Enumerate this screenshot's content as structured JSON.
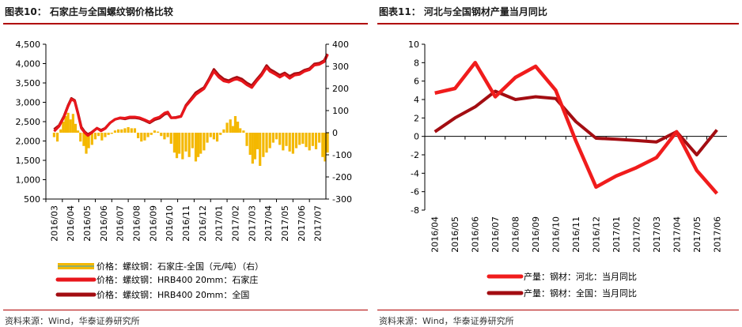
{
  "left_panel": {
    "title": "图表10：   石家庄与全国螺纹钢价格比较",
    "source": "资料来源：Wind，华泰证券研究所"
  },
  "right_panel": {
    "title": "图表11：   河北与全国钢材产量当月同比",
    "source": "资料来源：Wind，华泰证券研究所"
  },
  "chart_data": [
    {
      "type": "line",
      "title": "",
      "ylim_left": [
        500,
        4500
      ],
      "ylim_right": [
        -300,
        400
      ],
      "y_ticks_left": [
        "4,500",
        "4,000",
        "3,500",
        "3,000",
        "2,500",
        "2,000",
        "1,500",
        "1,000",
        "500"
      ],
      "y_ticks_right": [
        "400",
        "300",
        "200",
        "100",
        "0",
        "-100",
        "-200",
        "-300"
      ],
      "x_ticks": [
        "2016/03",
        "2016/04",
        "2016/05",
        "2016/06",
        "2016/07",
        "2016/08",
        "2016/09",
        "2016/10",
        "2016/11",
        "2016/12",
        "2017/01",
        "2017/02",
        "2017/03",
        "2017/04",
        "2017/05",
        "2017/06",
        "2017/07"
      ],
      "legend": [
        {
          "label": "价格：螺纹钢：石家庄-全国（元/吨）（右）",
          "color": "#f4b800"
        },
        {
          "label": "价格：螺纹钢：HRB400 20mm：石家庄",
          "color": "#e8161b"
        },
        {
          "label": "价格：螺纹钢：HRB400 20mm：全国",
          "color": "#a30d12"
        }
      ],
      "series": [
        {
          "name": "价格：螺纹钢：HRB400 20mm：石家庄",
          "axis": "left",
          "points": [
            [
              0,
              2250
            ],
            [
              0.3,
              2380
            ],
            [
              0.6,
              2620
            ],
            [
              0.85,
              2900
            ],
            [
              1.05,
              3080
            ],
            [
              1.25,
              3030
            ],
            [
              1.45,
              2700
            ],
            [
              1.65,
              2330
            ],
            [
              1.85,
              2220
            ],
            [
              2.05,
              2140
            ],
            [
              2.3,
              2220
            ],
            [
              2.6,
              2330
            ],
            [
              2.85,
              2260
            ],
            [
              3.1,
              2320
            ],
            [
              3.4,
              2470
            ],
            [
              3.7,
              2560
            ],
            [
              4.0,
              2600
            ],
            [
              4.3,
              2590
            ],
            [
              4.6,
              2620
            ],
            [
              4.9,
              2620
            ],
            [
              5.2,
              2600
            ],
            [
              5.5,
              2550
            ],
            [
              5.8,
              2490
            ],
            [
              6.1,
              2580
            ],
            [
              6.4,
              2620
            ],
            [
              6.7,
              2720
            ],
            [
              6.9,
              2750
            ],
            [
              7.1,
              2600
            ],
            [
              7.4,
              2600
            ],
            [
              7.7,
              2630
            ],
            [
              8.0,
              2900
            ],
            [
              8.3,
              3050
            ],
            [
              8.6,
              3200
            ],
            [
              8.9,
              3290
            ],
            [
              9.1,
              3350
            ],
            [
              9.4,
              3570
            ],
            [
              9.7,
              3800
            ],
            [
              10.0,
              3650
            ],
            [
              10.3,
              3550
            ],
            [
              10.6,
              3520
            ],
            [
              10.9,
              3580
            ],
            [
              11.1,
              3600
            ],
            [
              11.4,
              3550
            ],
            [
              11.7,
              3450
            ],
            [
              12.0,
              3380
            ],
            [
              12.3,
              3550
            ],
            [
              12.6,
              3700
            ],
            [
              12.9,
              3900
            ],
            [
              13.1,
              3800
            ],
            [
              13.4,
              3730
            ],
            [
              13.7,
              3650
            ],
            [
              14.0,
              3720
            ],
            [
              14.3,
              3620
            ],
            [
              14.6,
              3700
            ],
            [
              14.9,
              3720
            ],
            [
              15.2,
              3800
            ],
            [
              15.5,
              3840
            ],
            [
              15.8,
              3960
            ],
            [
              16.1,
              3980
            ],
            [
              16.4,
              4050
            ],
            [
              16.6,
              4230
            ]
          ]
        },
        {
          "name": "价格：螺纹钢：HRB400 20mm：全国",
          "axis": "left",
          "points": [
            [
              0,
              2300
            ],
            [
              0.3,
              2400
            ],
            [
              0.6,
              2640
            ],
            [
              0.85,
              2920
            ],
            [
              1.05,
              3100
            ],
            [
              1.25,
              3050
            ],
            [
              1.45,
              2720
            ],
            [
              1.65,
              2360
            ],
            [
              1.85,
              2240
            ],
            [
              2.05,
              2170
            ],
            [
              2.3,
              2230
            ],
            [
              2.6,
              2330
            ],
            [
              2.85,
              2280
            ],
            [
              3.1,
              2330
            ],
            [
              3.4,
              2470
            ],
            [
              3.7,
              2560
            ],
            [
              4.0,
              2590
            ],
            [
              4.3,
              2570
            ],
            [
              4.6,
              2600
            ],
            [
              4.9,
              2600
            ],
            [
              5.2,
              2580
            ],
            [
              5.5,
              2530
            ],
            [
              5.8,
              2470
            ],
            [
              6.1,
              2550
            ],
            [
              6.4,
              2590
            ],
            [
              6.7,
              2690
            ],
            [
              6.9,
              2720
            ],
            [
              7.1,
              2600
            ],
            [
              7.4,
              2610
            ],
            [
              7.7,
              2640
            ],
            [
              8.0,
              2920
            ],
            [
              8.3,
              3080
            ],
            [
              8.6,
              3250
            ],
            [
              8.9,
              3330
            ],
            [
              9.1,
              3380
            ],
            [
              9.4,
              3600
            ],
            [
              9.7,
              3850
            ],
            [
              10.0,
              3700
            ],
            [
              10.3,
              3600
            ],
            [
              10.6,
              3560
            ],
            [
              10.9,
              3620
            ],
            [
              11.1,
              3650
            ],
            [
              11.4,
              3600
            ],
            [
              11.7,
              3500
            ],
            [
              12.0,
              3430
            ],
            [
              12.3,
              3590
            ],
            [
              12.6,
              3740
            ],
            [
              12.9,
              3950
            ],
            [
              13.1,
              3850
            ],
            [
              13.4,
              3780
            ],
            [
              13.7,
              3700
            ],
            [
              14.0,
              3760
            ],
            [
              14.3,
              3670
            ],
            [
              14.6,
              3740
            ],
            [
              14.9,
              3760
            ],
            [
              15.2,
              3830
            ],
            [
              15.5,
              3870
            ],
            [
              15.8,
              3990
            ],
            [
              16.1,
              4010
            ],
            [
              16.4,
              4080
            ],
            [
              16.6,
              4250
            ]
          ]
        },
        {
          "name": "价格：螺纹钢：石家庄-全国（元/吨）（右）",
          "axis": "right",
          "type": "bar",
          "points": [
            [
              0.0,
              -20
            ],
            [
              0.2,
              -40
            ],
            [
              0.4,
              15
            ],
            [
              0.55,
              50
            ],
            [
              0.7,
              75
            ],
            [
              0.85,
              90
            ],
            [
              1.0,
              60
            ],
            [
              1.15,
              85
            ],
            [
              1.3,
              40
            ],
            [
              1.45,
              10
            ],
            [
              1.6,
              -40
            ],
            [
              1.8,
              -60
            ],
            [
              1.95,
              -95
            ],
            [
              2.1,
              -70
            ],
            [
              2.3,
              -55
            ],
            [
              2.5,
              -30
            ],
            [
              2.7,
              -15
            ],
            [
              2.9,
              -35
            ],
            [
              3.1,
              -20
            ],
            [
              3.3,
              -10
            ],
            [
              3.5,
              -5
            ],
            [
              3.7,
              10
            ],
            [
              3.9,
              15
            ],
            [
              4.1,
              15
            ],
            [
              4.3,
              20
            ],
            [
              4.5,
              25
            ],
            [
              4.7,
              20
            ],
            [
              4.9,
              20
            ],
            [
              5.1,
              -25
            ],
            [
              5.3,
              -40
            ],
            [
              5.5,
              -35
            ],
            [
              5.7,
              -20
            ],
            [
              5.9,
              -10
            ],
            [
              6.1,
              10
            ],
            [
              6.3,
              5
            ],
            [
              6.5,
              -15
            ],
            [
              6.7,
              -30
            ],
            [
              6.9,
              -20
            ],
            [
              7.1,
              -50
            ],
            [
              7.3,
              -90
            ],
            [
              7.45,
              -115
            ],
            [
              7.6,
              -95
            ],
            [
              7.8,
              -120
            ],
            [
              8.0,
              -85
            ],
            [
              8.2,
              -110
            ],
            [
              8.4,
              -70
            ],
            [
              8.6,
              -130
            ],
            [
              8.75,
              -110
            ],
            [
              8.9,
              -95
            ],
            [
              9.1,
              -80
            ],
            [
              9.3,
              -45
            ],
            [
              9.5,
              -20
            ],
            [
              9.7,
              -30
            ],
            [
              9.9,
              -40
            ],
            [
              10.1,
              -10
            ],
            [
              10.3,
              15
            ],
            [
              10.5,
              45
            ],
            [
              10.7,
              60
            ],
            [
              10.85,
              30
            ],
            [
              11.0,
              75
            ],
            [
              11.15,
              50
            ],
            [
              11.3,
              20
            ],
            [
              11.5,
              10
            ],
            [
              11.7,
              -60
            ],
            [
              11.9,
              -100
            ],
            [
              12.05,
              -140
            ],
            [
              12.2,
              -120
            ],
            [
              12.35,
              -75
            ],
            [
              12.5,
              -150
            ],
            [
              12.7,
              -110
            ],
            [
              12.9,
              -90
            ],
            [
              13.1,
              -70
            ],
            [
              13.3,
              -45
            ],
            [
              13.5,
              -30
            ],
            [
              13.7,
              -55
            ],
            [
              13.9,
              -80
            ],
            [
              14.1,
              -60
            ],
            [
              14.3,
              -85
            ],
            [
              14.5,
              -95
            ],
            [
              14.7,
              -70
            ],
            [
              14.9,
              -55
            ],
            [
              15.1,
              -50
            ],
            [
              15.3,
              -65
            ],
            [
              15.5,
              -80
            ],
            [
              15.7,
              -60
            ],
            [
              15.9,
              -75
            ],
            [
              16.1,
              -45
            ],
            [
              16.3,
              -110
            ],
            [
              16.45,
              -130
            ],
            [
              16.6,
              -90
            ]
          ]
        }
      ]
    },
    {
      "type": "line",
      "title": "",
      "ylim": [
        -8,
        10
      ],
      "y_ticks": [
        "10",
        "8",
        "6",
        "4",
        "2",
        "0",
        "-2",
        "-4",
        "-6",
        "-8"
      ],
      "x_ticks": [
        "2016/04",
        "2016/05",
        "2016/06",
        "2016/07",
        "2016/08",
        "2016/09",
        "2016/10",
        "2016/11",
        "2016/12",
        "2017/01",
        "2017/02",
        "2017/03",
        "2017/04",
        "2017/05",
        "2017/06"
      ],
      "legend": [
        {
          "label": "产量：钢材：河北：当月同比",
          "color": "#f01c1c"
        },
        {
          "label": "产量：钢材：全国：当月同比",
          "color": "#a30d12"
        }
      ],
      "series": [
        {
          "name": "产量：钢材：河北：当月同比",
          "values": [
            4.7,
            5.2,
            8.0,
            4.3,
            6.4,
            7.6,
            5.0,
            -0.5,
            -5.5,
            -4.3,
            -3.4,
            -2.3,
            0.5,
            -3.7,
            -6.2
          ]
        },
        {
          "name": "产量：钢材：全国：当月同比",
          "values": [
            0.5,
            2.0,
            3.2,
            4.9,
            4.0,
            4.3,
            4.1,
            1.6,
            -0.2,
            -0.3,
            -0.45,
            -0.6,
            0.5,
            -2.0,
            0.7
          ]
        }
      ]
    }
  ]
}
